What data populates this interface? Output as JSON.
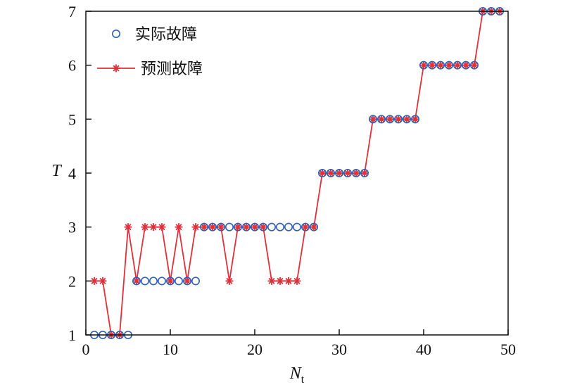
{
  "chart_data": {
    "type": "line",
    "xlabel": "N",
    "xlabel_sub": "t",
    "ylabel": "T",
    "xlim": [
      0,
      50
    ],
    "ylim": [
      1,
      7
    ],
    "xticks": [
      0,
      10,
      20,
      30,
      40,
      50
    ],
    "yticks": [
      1,
      2,
      3,
      4,
      5,
      6,
      7
    ],
    "legend_position": "top-left",
    "x": [
      1,
      2,
      3,
      4,
      5,
      6,
      7,
      8,
      9,
      10,
      11,
      12,
      13,
      14,
      15,
      16,
      17,
      18,
      19,
      20,
      21,
      22,
      23,
      24,
      25,
      26,
      27,
      28,
      29,
      30,
      31,
      32,
      33,
      34,
      35,
      36,
      37,
      38,
      39,
      40,
      41,
      42,
      43,
      44,
      45,
      46,
      47,
      48,
      49
    ],
    "series": [
      {
        "name": "实际故障",
        "marker": "circle",
        "color": "#2f5fb3",
        "values": [
          1,
          1,
          1,
          1,
          1,
          2,
          2,
          2,
          2,
          2,
          2,
          2,
          2,
          3,
          3,
          3,
          3,
          3,
          3,
          3,
          3,
          3,
          3,
          3,
          3,
          3,
          3,
          4,
          4,
          4,
          4,
          4,
          4,
          5,
          5,
          5,
          5,
          5,
          5,
          6,
          6,
          6,
          6,
          6,
          6,
          6,
          7,
          7,
          7
        ]
      },
      {
        "name": "预测故障",
        "marker": "star-line",
        "color": "#e0303a",
        "values": [
          2,
          2,
          1,
          1,
          3,
          2,
          3,
          3,
          3,
          2,
          3,
          2,
          3,
          3,
          3,
          3,
          2,
          3,
          3,
          3,
          3,
          2,
          2,
          2,
          2,
          3,
          3,
          4,
          4,
          4,
          4,
          4,
          4,
          5,
          5,
          5,
          5,
          5,
          5,
          6,
          6,
          6,
          6,
          6,
          6,
          6,
          7,
          7,
          7
        ]
      }
    ]
  }
}
